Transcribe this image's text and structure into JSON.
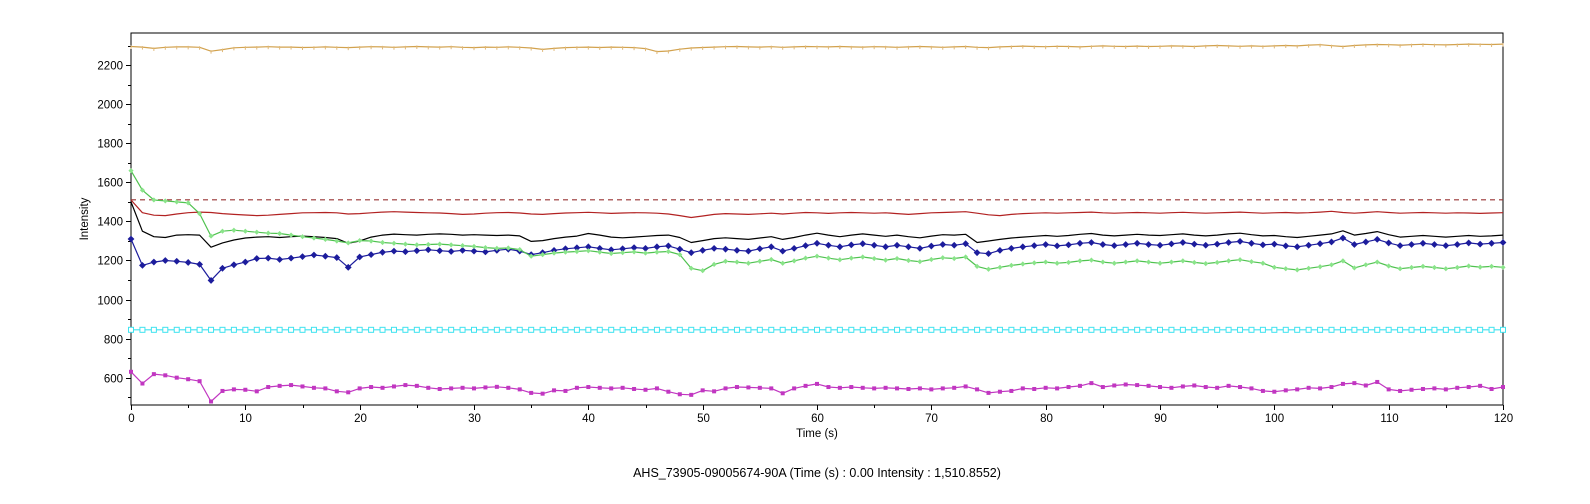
{
  "labels": {
    "ylabel": "Intensity",
    "xlabel": "Time (s)",
    "caption": "AHS_73905-09005674-90A (Time (s) : 0.00  Intensity : 1,510.8552)"
  },
  "cursor_readout": {
    "sample_id": "AHS_73905-09005674-90A",
    "time_s": "0.00",
    "intensity": "1,510.8552"
  },
  "colors": {
    "background": "#FFFFFF",
    "axis": "#000000",
    "tan": "#D2A24E",
    "tan_marker": "#E0B878",
    "reference_red": "#993333",
    "dark_red": "#B22222",
    "black": "#000000",
    "navy": "#1C1C9C",
    "green": "#4FC24F",
    "green_marker": "#8AE48A",
    "cyan": "#3FE3F0",
    "magenta": "#C136C1"
  },
  "chart_data": {
    "type": "line",
    "title": "",
    "xlabel": "Time (s)",
    "ylabel": "Intensity",
    "xlim": [
      0,
      120
    ],
    "ylim": [
      460,
      2365
    ],
    "grid": false,
    "legend": "none",
    "x_step": 1,
    "x_tick_labels": [
      0,
      10,
      20,
      30,
      40,
      50,
      60,
      70,
      80,
      90,
      100,
      110,
      120
    ],
    "x_minor_tick_step": 5,
    "y_tick_labels": [
      600,
      800,
      1000,
      1200,
      1400,
      1600,
      1800,
      2000,
      2200
    ],
    "y_minor_tick_step": 100,
    "series": [
      {
        "name": "trace-tan",
        "color": "#D2A24E",
        "marker": "tick",
        "marker_color": "#E0B878",
        "dash": null,
        "values": [
          2296,
          2293,
          2286,
          2292,
          2294,
          2294,
          2292,
          2272,
          2280,
          2289,
          2292,
          2293,
          2295,
          2293,
          2293,
          2291,
          2292,
          2294,
          2292,
          2290,
          2293,
          2295,
          2294,
          2292,
          2294,
          2296,
          2294,
          2293,
          2295,
          2292,
          2290,
          2293,
          2292,
          2294,
          2292,
          2288,
          2281,
          2286,
          2290,
          2292,
          2293,
          2291,
          2293,
          2292,
          2290,
          2285,
          2270,
          2273,
          2282,
          2288,
          2291,
          2293,
          2295,
          2296,
          2294,
          2293,
          2295,
          2292,
          2294,
          2296,
          2295,
          2294,
          2296,
          2294,
          2293,
          2295,
          2294,
          2292,
          2294,
          2296,
          2294,
          2292,
          2294,
          2296,
          2292,
          2290,
          2294,
          2296,
          2298,
          2296,
          2295,
          2297,
          2296,
          2294,
          2297,
          2299,
          2297,
          2296,
          2298,
          2296,
          2297,
          2299,
          2298,
          2296,
          2299,
          2301,
          2299,
          2297,
          2299,
          2297,
          2299,
          2301,
          2299,
          2303,
          2305,
          2300,
          2296,
          2301,
          2304,
          2306,
          2305,
          2303,
          2305,
          2307,
          2305,
          2304,
          2306,
          2308,
          2307,
          2306,
          2308
        ]
      },
      {
        "name": "reference-dashed",
        "color": "#993333",
        "marker": "none",
        "dash": "5,4",
        "constant_value": 1510.86
      },
      {
        "name": "trace-dark-red",
        "color": "#B22222",
        "marker": "none",
        "dash": null,
        "values": [
          1510,
          1445,
          1432,
          1430,
          1438,
          1445,
          1448,
          1446,
          1440,
          1436,
          1433,
          1430,
          1432,
          1436,
          1440,
          1444,
          1445,
          1446,
          1444,
          1438,
          1440,
          1444,
          1448,
          1450,
          1448,
          1446,
          1444,
          1443,
          1440,
          1436,
          1438,
          1442,
          1445,
          1446,
          1443,
          1438,
          1436,
          1440,
          1443,
          1445,
          1447,
          1444,
          1441,
          1443,
          1445,
          1444,
          1442,
          1438,
          1430,
          1420,
          1428,
          1436,
          1440,
          1438,
          1436,
          1439,
          1442,
          1438,
          1442,
          1446,
          1444,
          1441,
          1444,
          1446,
          1444,
          1442,
          1444,
          1440,
          1436,
          1440,
          1444,
          1446,
          1448,
          1450,
          1442,
          1434,
          1430,
          1436,
          1440,
          1442,
          1444,
          1442,
          1444,
          1446,
          1448,
          1444,
          1442,
          1444,
          1446,
          1444,
          1442,
          1445,
          1447,
          1444,
          1442,
          1444,
          1446,
          1448,
          1445,
          1442,
          1444,
          1446,
          1443,
          1445,
          1448,
          1452,
          1446,
          1442,
          1446,
          1450,
          1446,
          1442,
          1444,
          1446,
          1444,
          1442,
          1444,
          1443,
          1441,
          1443,
          1445
        ]
      },
      {
        "name": "trace-black",
        "color": "#000000",
        "marker": "none",
        "dash": null,
        "values": [
          1500,
          1350,
          1322,
          1318,
          1330,
          1332,
          1330,
          1268,
          1290,
          1305,
          1315,
          1320,
          1322,
          1318,
          1322,
          1325,
          1322,
          1318,
          1312,
          1288,
          1300,
          1320,
          1330,
          1335,
          1332,
          1330,
          1334,
          1336,
          1334,
          1330,
          1332,
          1330,
          1328,
          1330,
          1326,
          1298,
          1302,
          1312,
          1320,
          1325,
          1338,
          1330,
          1320,
          1316,
          1320,
          1324,
          1328,
          1330,
          1318,
          1292,
          1302,
          1312,
          1316,
          1312,
          1308,
          1315,
          1322,
          1308,
          1318,
          1330,
          1340,
          1330,
          1322,
          1330,
          1336,
          1330,
          1324,
          1330,
          1322,
          1316,
          1325,
          1332,
          1330,
          1334,
          1292,
          1300,
          1308,
          1315,
          1320,
          1324,
          1328,
          1324,
          1328,
          1334,
          1338,
          1330,
          1326,
          1330,
          1334,
          1330,
          1328,
          1332,
          1336,
          1330,
          1326,
          1330,
          1336,
          1340,
          1332,
          1326,
          1328,
          1322,
          1318,
          1324,
          1330,
          1336,
          1352,
          1330,
          1338,
          1348,
          1332,
          1320,
          1324,
          1328,
          1324,
          1320,
          1324,
          1328,
          1324,
          1326,
          1330
        ]
      },
      {
        "name": "trace-navy",
        "color": "#1C1C9C",
        "marker": "diamond",
        "marker_color": "#1C1C9C",
        "dash": null,
        "values": [
          1310,
          1175,
          1192,
          1200,
          1196,
          1190,
          1180,
          1098,
          1160,
          1178,
          1192,
          1210,
          1212,
          1205,
          1212,
          1220,
          1228,
          1222,
          1215,
          1165,
          1218,
          1230,
          1242,
          1248,
          1245,
          1250,
          1255,
          1250,
          1246,
          1252,
          1248,
          1244,
          1252,
          1258,
          1248,
          1230,
          1240,
          1252,
          1260,
          1265,
          1270,
          1262,
          1255,
          1260,
          1266,
          1262,
          1270,
          1275,
          1258,
          1240,
          1252,
          1262,
          1258,
          1252,
          1248,
          1260,
          1270,
          1248,
          1262,
          1276,
          1288,
          1278,
          1270,
          1280,
          1286,
          1278,
          1270,
          1278,
          1270,
          1262,
          1274,
          1282,
          1278,
          1286,
          1240,
          1235,
          1252,
          1262,
          1270,
          1276,
          1282,
          1275,
          1280,
          1288,
          1292,
          1282,
          1276,
          1282,
          1288,
          1282,
          1278,
          1285,
          1292,
          1284,
          1278,
          1284,
          1292,
          1298,
          1288,
          1280,
          1284,
          1275,
          1270,
          1278,
          1286,
          1295,
          1315,
          1282,
          1295,
          1308,
          1290,
          1276,
          1282,
          1288,
          1282,
          1276,
          1282,
          1290,
          1284,
          1288,
          1292
        ]
      },
      {
        "name": "trace-green",
        "color": "#4FC24F",
        "marker": "diamond",
        "marker_color": "#8AE48A",
        "dash": null,
        "values": [
          1660,
          1560,
          1510,
          1505,
          1500,
          1495,
          1440,
          1325,
          1350,
          1355,
          1350,
          1345,
          1340,
          1338,
          1330,
          1322,
          1315,
          1308,
          1300,
          1290,
          1302,
          1300,
          1292,
          1288,
          1284,
          1280,
          1282,
          1284,
          1280,
          1276,
          1272,
          1266,
          1262,
          1264,
          1256,
          1222,
          1230,
          1238,
          1243,
          1246,
          1250,
          1243,
          1236,
          1240,
          1244,
          1238,
          1243,
          1246,
          1230,
          1160,
          1148,
          1180,
          1196,
          1192,
          1186,
          1196,
          1205,
          1186,
          1198,
          1212,
          1222,
          1212,
          1204,
          1212,
          1218,
          1210,
          1202,
          1210,
          1200,
          1194,
          1205,
          1214,
          1210,
          1218,
          1170,
          1155,
          1165,
          1175,
          1182,
          1188,
          1192,
          1186,
          1190,
          1198,
          1202,
          1192,
          1186,
          1192,
          1198,
          1192,
          1186,
          1192,
          1198,
          1190,
          1184,
          1190,
          1198,
          1204,
          1194,
          1186,
          1165,
          1158,
          1152,
          1160,
          1168,
          1178,
          1198,
          1162,
          1178,
          1192,
          1172,
          1158,
          1164,
          1170,
          1164,
          1158,
          1164,
          1172,
          1166,
          1170,
          1165
        ]
      },
      {
        "name": "trace-cyan",
        "color": "#3FE3F0",
        "marker": "open-square",
        "marker_color": "#3FE3F0",
        "dash": null,
        "constant_value": 845
      },
      {
        "name": "trace-magenta",
        "color": "#C136C1",
        "marker": "square",
        "marker_color": "#C136C1",
        "dash": null,
        "values": [
          630,
          570,
          618,
          612,
          600,
          592,
          582,
          478,
          532,
          540,
          538,
          530,
          552,
          558,
          562,
          555,
          548,
          545,
          530,
          525,
          545,
          552,
          548,
          555,
          562,
          558,
          548,
          542,
          545,
          548,
          545,
          550,
          553,
          548,
          540,
          522,
          518,
          535,
          532,
          548,
          552,
          548,
          545,
          548,
          542,
          538,
          545,
          528,
          515,
          512,
          535,
          530,
          545,
          552,
          550,
          548,
          545,
          520,
          545,
          558,
          568,
          552,
          548,
          552,
          548,
          545,
          548,
          545,
          542,
          545,
          540,
          545,
          548,
          555,
          540,
          522,
          528,
          532,
          545,
          542,
          548,
          545,
          552,
          558,
          572,
          552,
          560,
          565,
          562,
          558,
          552,
          548,
          555,
          560,
          552,
          548,
          558,
          552,
          545,
          532,
          528,
          535,
          540,
          548,
          545,
          552,
          568,
          572,
          560,
          578,
          540,
          532,
          538,
          542,
          545,
          540,
          548,
          552,
          558,
          542,
          552
        ]
      }
    ]
  }
}
